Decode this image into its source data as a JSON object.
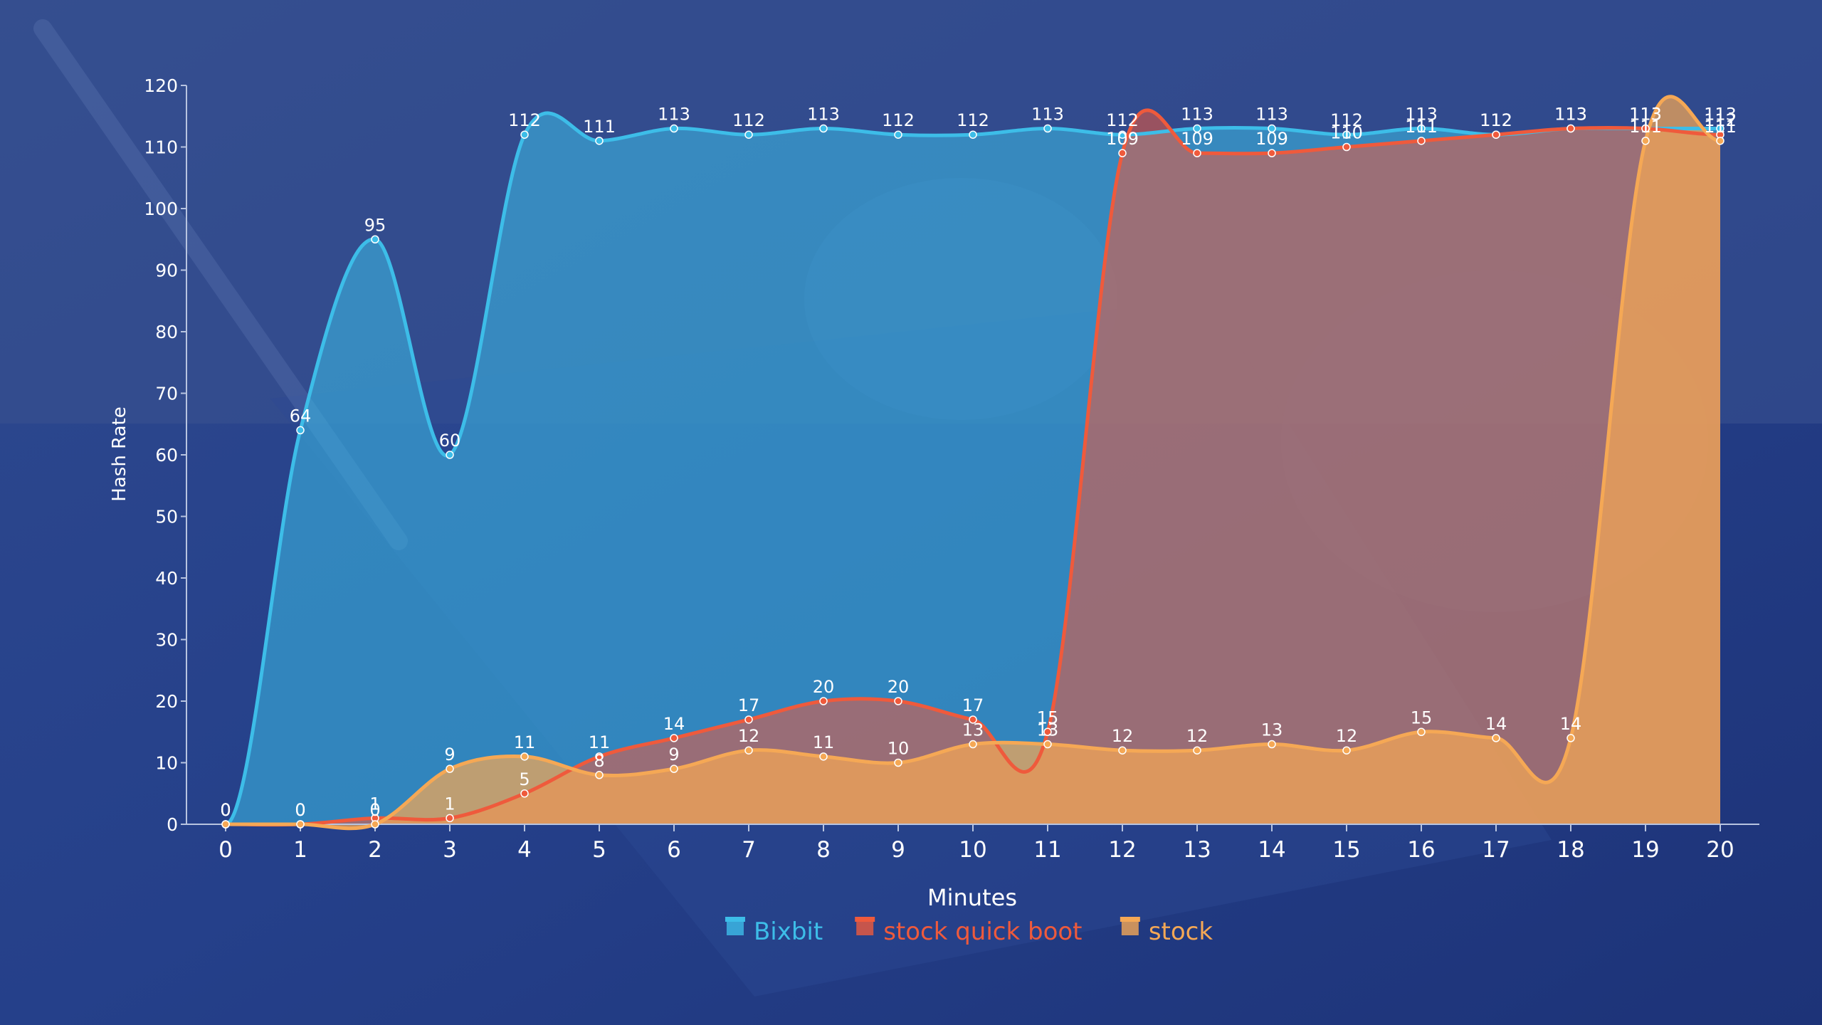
{
  "chart_data": {
    "type": "area",
    "xlabel": "Minutes",
    "ylabel": "Hash Rate",
    "x": [
      0,
      1,
      2,
      3,
      4,
      5,
      6,
      7,
      8,
      9,
      10,
      11,
      12,
      13,
      14,
      15,
      16,
      17,
      18,
      19,
      20
    ],
    "xlim": [
      0,
      20
    ],
    "ylim": [
      0,
      120
    ],
    "y_ticks": [
      0,
      10,
      20,
      30,
      40,
      50,
      60,
      70,
      80,
      90,
      100,
      110,
      120
    ],
    "grid": false,
    "legend_position": "bottom",
    "data_labels": true,
    "series": [
      {
        "name": "Bixbit",
        "color": "#3dbde8",
        "values": [
          0,
          64,
          95,
          60,
          112,
          111,
          113,
          112,
          113,
          112,
          112,
          113,
          112,
          113,
          113,
          112,
          113,
          112,
          113,
          113,
          113
        ]
      },
      {
        "name": "stock quick boot",
        "color": "#ef5a3c",
        "values": [
          0,
          0,
          1,
          1,
          5,
          11,
          14,
          17,
          20,
          20,
          17,
          15,
          109,
          109,
          109,
          110,
          111,
          112,
          113,
          113,
          112
        ]
      },
      {
        "name": "stock",
        "color": "#f5a855",
        "values": [
          0,
          0,
          0,
          9,
          11,
          8,
          9,
          12,
          11,
          10,
          13,
          13,
          12,
          12,
          13,
          12,
          15,
          14,
          14,
          111,
          111
        ]
      }
    ]
  }
}
